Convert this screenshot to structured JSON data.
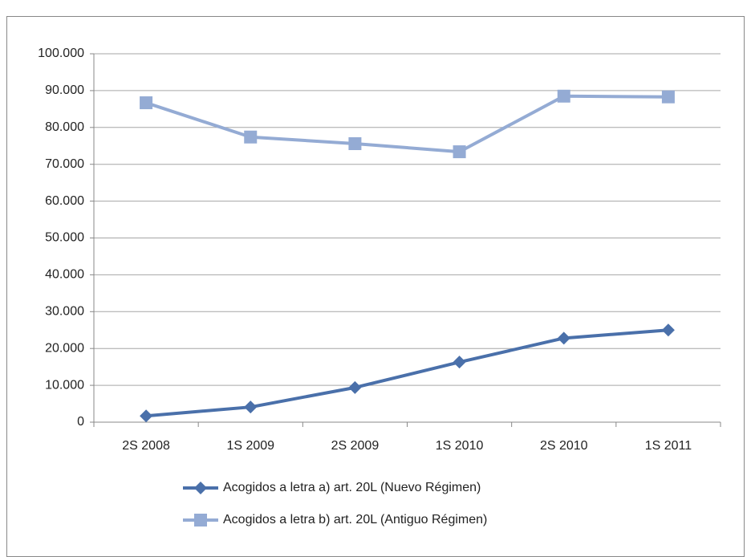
{
  "chart_data": {
    "type": "line",
    "categories": [
      "2S 2008",
      "1S 2009",
      "2S 2009",
      "1S 2010",
      "2S 2010",
      "1S 2011"
    ],
    "series": [
      {
        "name": "Acogidos a letra a) art. 20L (Nuevo Régimen)",
        "color": "#4a70aa",
        "marker": "diamond",
        "values": [
          1700,
          4100,
          9400,
          16300,
          22800,
          25000
        ]
      },
      {
        "name": "Acogidos a letra b) art. 20L (Antiguo Régimen)",
        "color": "#94abd4",
        "marker": "square",
        "values": [
          86700,
          77400,
          75600,
          73400,
          88500,
          88300
        ]
      }
    ],
    "ylim": [
      0,
      100000
    ],
    "yticks": [
      0,
      {
        "value": 10000,
        "label": "10.000"
      },
      {
        "value": 20000,
        "label": "20.000"
      },
      {
        "value": 30000,
        "label": "30.000"
      },
      {
        "value": 40000,
        "label": "40.000"
      },
      {
        "value": 50000,
        "label": "50.000"
      },
      {
        "value": 60000,
        "label": "60.000"
      },
      {
        "value": 70000,
        "label": "70.000"
      },
      {
        "value": 80000,
        "label": "80.000"
      },
      {
        "value": 90000,
        "label": "90.000"
      },
      {
        "value": 100000,
        "label": "100.000"
      }
    ],
    "grid": true,
    "legend": "bottom"
  }
}
